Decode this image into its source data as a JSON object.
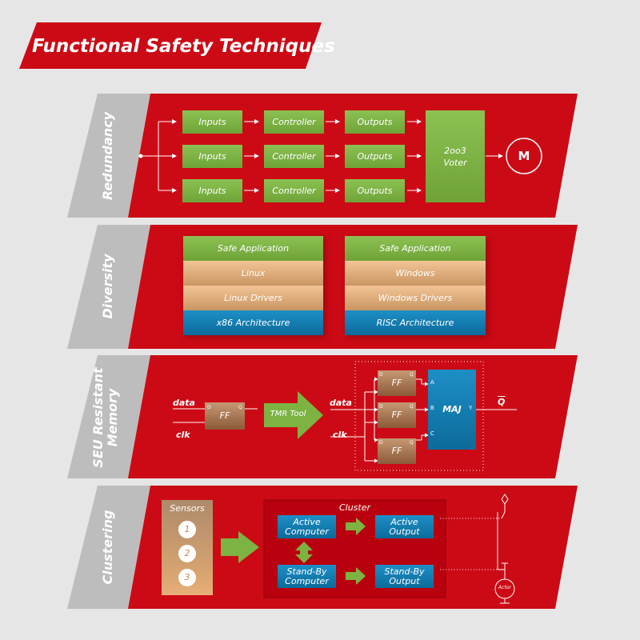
{
  "title": "Functional Safety Techniques",
  "colors": {
    "red": "#cc0a15",
    "green": "#7cb342",
    "blue": "#1580b8",
    "tan": "#e2ae7c",
    "grey": "#bdbdbd"
  },
  "redundancy": {
    "label": "Redundancy",
    "rows": [
      {
        "inputs": "Inputs",
        "controller": "Controller",
        "outputs": "Outputs"
      },
      {
        "inputs": "Inputs",
        "controller": "Controller",
        "outputs": "Outputs"
      },
      {
        "inputs": "Inputs",
        "controller": "Controller",
        "outputs": "Outputs"
      }
    ],
    "voter": "2oo3\nVoter",
    "motor": "M"
  },
  "diversity": {
    "label": "Diversity",
    "stacks": [
      {
        "app": "Safe Application",
        "os": "Linux",
        "drivers": "Linux Drivers",
        "arch": "x86 Architecture"
      },
      {
        "app": "Safe Application",
        "os": "Windows",
        "drivers": "Windows Drivers",
        "arch": "RISC Architecture"
      }
    ]
  },
  "seu": {
    "label": "SEU Resistant\nMemory",
    "data": "data",
    "clk": "clk",
    "ff": "FF",
    "d": "D",
    "q": "Q",
    "tool": "TMR Tool",
    "maj": "MAJ",
    "a": "A",
    "b": "B",
    "c": "C",
    "y": "Y",
    "out": "Q"
  },
  "clustering": {
    "label": "Clustering",
    "sensors": "Sensors",
    "sensor_numbers": [
      "1",
      "2",
      "3"
    ],
    "cluster": "Cluster",
    "active_computer": "Active\nComputer",
    "active_output": "Active\nOutput",
    "standby_computer": "Stand-By\nComputer",
    "standby_output": "Stand-By\nOutput",
    "actor": "Actor"
  }
}
